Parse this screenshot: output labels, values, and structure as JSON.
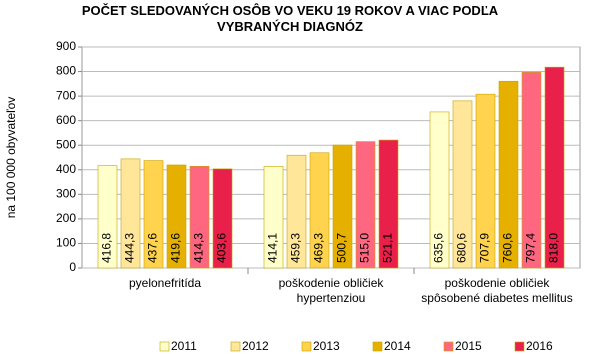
{
  "chart_data": {
    "type": "bar",
    "title": "POČET SLEDOVANÝCH OSÔB VO VEKU 19 ROKOV A VIAC PODĽA VYBRANÝCH DIAGNÓZ",
    "y_label": "na 100 000 obyvateľov",
    "categories": [
      "pyelonefritída",
      "poškodenie obličiek hypertenziou",
      "poškodenie obličiek spôsobené diabetes mellitus"
    ],
    "series": [
      {
        "name": "2011",
        "color": "#FFFFCC",
        "values": [
          416.8,
          414.1,
          635.6
        ],
        "value_labels": [
          "416,8",
          "414,1",
          "635,6"
        ]
      },
      {
        "name": "2012",
        "color": "#FFE699",
        "values": [
          444.3,
          459.3,
          680.6
        ],
        "value_labels": [
          "444,3",
          "459,3",
          "680,6"
        ]
      },
      {
        "name": "2013",
        "color": "#FFD34D",
        "values": [
          437.6,
          469.3,
          707.9
        ],
        "value_labels": [
          "437,6",
          "469,3",
          "707,9"
        ]
      },
      {
        "name": "2014",
        "color": "#E6B000",
        "values": [
          419.6,
          500.7,
          760.6
        ],
        "value_labels": [
          "419,6",
          "500,7",
          "760,6"
        ]
      },
      {
        "name": "2015",
        "color": "#FF6680",
        "values": [
          414.3,
          515.0,
          797.4
        ],
        "value_labels": [
          "414,3",
          "515,0",
          "797,4"
        ]
      },
      {
        "name": "2016",
        "color": "#E8204A",
        "values": [
          403.6,
          521.1,
          818.0
        ],
        "value_labels": [
          "403,6",
          "521,1",
          "818,0"
        ]
      }
    ],
    "ylim": [
      0,
      900
    ],
    "yticks": [
      0,
      100,
      200,
      300,
      400,
      500,
      600,
      700,
      800,
      900
    ],
    "grid": true,
    "legend": "bottom"
  }
}
